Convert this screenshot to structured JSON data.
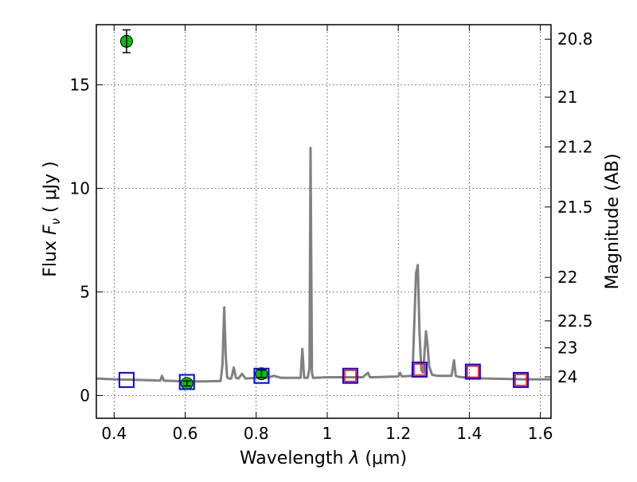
{
  "chart_data": {
    "type": "scatter",
    "title": "",
    "xlabel": "Wavelength  λ (μm)",
    "ylabel": "Flux  F_ν  ( μJy )",
    "ylabel_parts": {
      "pre": "Flux  ",
      "var": "F",
      "sub": "ν",
      "post": "  ( μJy )"
    },
    "xlabel_parts": {
      "pre": "Wavelength  ",
      "var": "λ",
      "post": " (μm)"
    },
    "y2label": "Magnitude (AB)",
    "xlim": [
      0.35,
      1.63
    ],
    "ylim": [
      -1.1,
      17.9
    ],
    "grid": true,
    "x_ticks": [
      {
        "value": 0.4,
        "label": "0.4"
      },
      {
        "value": 0.6,
        "label": "0.6"
      },
      {
        "value": 0.8,
        "label": "0.8"
      },
      {
        "value": 1.0,
        "label": "1"
      },
      {
        "value": 1.2,
        "label": "1.2"
      },
      {
        "value": 1.4,
        "label": "1.4"
      },
      {
        "value": 1.6,
        "label": "1.6"
      }
    ],
    "y_ticks": [
      {
        "value": 0,
        "label": "0"
      },
      {
        "value": 5,
        "label": "5"
      },
      {
        "value": 10,
        "label": "10"
      },
      {
        "value": 15,
        "label": "15"
      }
    ],
    "y2_ticks": [
      {
        "label": "20.8",
        "flux": 17.2
      },
      {
        "label": "21",
        "flux": 14.4
      },
      {
        "label": "21.2",
        "flux": 12.0
      },
      {
        "label": "21.5",
        "flux": 9.1
      },
      {
        "label": "22",
        "flux": 5.7
      },
      {
        "label": "22.5",
        "flux": 3.6
      },
      {
        "label": "23",
        "flux": 2.3
      },
      {
        "label": "24",
        "flux": 0.9
      }
    ],
    "series": [
      {
        "name": "model-spectrum",
        "kind": "line",
        "color": "#808080",
        "x": [
          0.35,
          0.4,
          0.45,
          0.5,
          0.53,
          0.535,
          0.54,
          0.6,
          0.65,
          0.7,
          0.705,
          0.71,
          0.714,
          0.718,
          0.722,
          0.73,
          0.737,
          0.743,
          0.75,
          0.76,
          0.77,
          0.8,
          0.83,
          0.85,
          0.87,
          0.9,
          0.925,
          0.93,
          0.935,
          0.945,
          0.95,
          0.953,
          0.957,
          0.96,
          0.965,
          1.0,
          1.05,
          1.1,
          1.115,
          1.12,
          1.13,
          1.2,
          1.205,
          1.21,
          1.24,
          1.25,
          1.255,
          1.26,
          1.265,
          1.27,
          1.278,
          1.282,
          1.287,
          1.295,
          1.31,
          1.35,
          1.357,
          1.362,
          1.37,
          1.4,
          1.45,
          1.5,
          1.55,
          1.6,
          1.63
        ],
        "y": [
          0.82,
          0.78,
          0.76,
          0.74,
          0.72,
          0.95,
          0.72,
          0.68,
          0.68,
          0.7,
          1.5,
          4.25,
          2.0,
          0.9,
          0.82,
          0.82,
          1.35,
          0.85,
          0.82,
          1.05,
          0.82,
          0.85,
          0.85,
          0.95,
          0.85,
          0.85,
          0.85,
          2.25,
          0.85,
          0.85,
          1.3,
          11.95,
          1.1,
          0.85,
          0.85,
          0.88,
          0.88,
          0.88,
          1.1,
          0.88,
          0.88,
          0.92,
          1.1,
          0.92,
          0.95,
          5.9,
          6.3,
          3.0,
          1.2,
          1.1,
          3.1,
          2.5,
          1.4,
          1.0,
          0.95,
          0.95,
          1.7,
          0.95,
          0.9,
          0.85,
          0.82,
          0.8,
          0.78,
          0.78,
          0.78
        ]
      },
      {
        "name": "observed-photometry",
        "kind": "points",
        "color": "#00c000",
        "points": [
          {
            "x": 0.435,
            "y": 17.1,
            "err": 0.55
          },
          {
            "x": 0.605,
            "y": 0.58,
            "err": 0.12
          },
          {
            "x": 0.815,
            "y": 1.05,
            "err": 0.18
          }
        ]
      },
      {
        "name": "model-photometry",
        "kind": "squares",
        "color": "#0000ff",
        "size": "large",
        "points": [
          {
            "x": 0.435,
            "y": 0.75
          },
          {
            "x": 0.605,
            "y": 0.65
          },
          {
            "x": 0.815,
            "y": 0.95
          },
          {
            "x": 1.065,
            "y": 0.95
          },
          {
            "x": 1.26,
            "y": 1.25
          },
          {
            "x": 1.41,
            "y": 1.15
          },
          {
            "x": 1.545,
            "y": 0.75
          }
        ]
      },
      {
        "name": "synthetic-photometry",
        "kind": "squares",
        "color": "#ff0000",
        "size": "small",
        "points": [
          {
            "x": 1.065,
            "y": 0.95
          },
          {
            "x": 1.26,
            "y": 1.25
          },
          {
            "x": 1.41,
            "y": 1.15
          },
          {
            "x": 1.545,
            "y": 0.75
          }
        ]
      }
    ]
  }
}
